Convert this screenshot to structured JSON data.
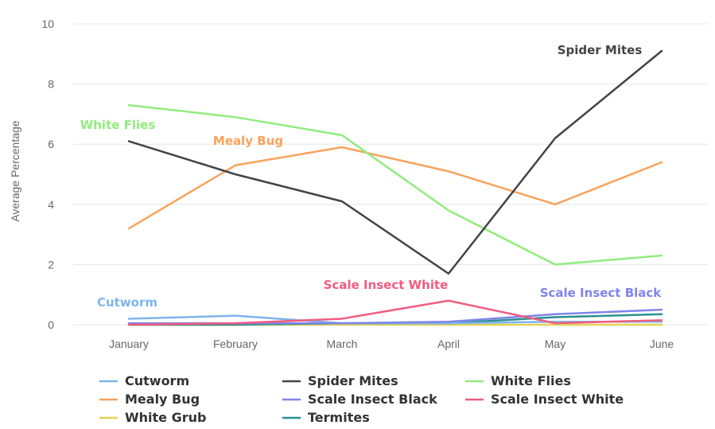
{
  "chart_data": {
    "type": "line",
    "title": "",
    "xlabel": "",
    "ylabel": "Average Percentage",
    "ylim": [
      0,
      10
    ],
    "yticks": [
      "0",
      "2",
      "4",
      "6",
      "8",
      "10"
    ],
    "categories": [
      "January",
      "February",
      "March",
      "April",
      "May",
      "June"
    ],
    "grid": true,
    "legend_position": "bottom",
    "series": [
      {
        "name": "Cutworm",
        "color": "#7cb5ec",
        "values": [
          0.2,
          0.3,
          0.05,
          0.05,
          0.1,
          0.1
        ]
      },
      {
        "name": "Spider Mites",
        "color": "#434348",
        "values": [
          6.1,
          5.0,
          4.1,
          1.7,
          6.2,
          9.1
        ]
      },
      {
        "name": "White Flies",
        "color": "#90ed7d",
        "values": [
          7.3,
          6.9,
          6.3,
          3.8,
          2.0,
          2.3
        ]
      },
      {
        "name": "Mealy Bug",
        "color": "#f7a35c",
        "values": [
          3.2,
          5.3,
          5.9,
          5.1,
          4.0,
          5.4
        ]
      },
      {
        "name": "Scale Insect Black",
        "color": "#8085e9",
        "values": [
          0.05,
          0.05,
          0.05,
          0.1,
          0.35,
          0.5
        ]
      },
      {
        "name": "Scale Insect White",
        "color": "#f15c80",
        "values": [
          0.0,
          0.05,
          0.2,
          0.8,
          0.05,
          0.15
        ]
      },
      {
        "name": "White Grub",
        "color": "#e4d354",
        "values": [
          0.0,
          0.0,
          0.0,
          0.0,
          0.0,
          0.0
        ]
      },
      {
        "name": "Termites",
        "color": "#2b908f",
        "values": [
          0.0,
          0.0,
          0.05,
          0.05,
          0.25,
          0.35
        ]
      }
    ],
    "annotations": [
      {
        "text": "White Flies",
        "series": "White Flies"
      },
      {
        "text": "Mealy Bug",
        "series": "Mealy Bug"
      },
      {
        "text": "Spider Mites",
        "series": "Spider Mites"
      },
      {
        "text": "Cutworm",
        "series": "Cutworm"
      },
      {
        "text": "Scale Insect White",
        "series": "Scale Insect White"
      },
      {
        "text": "Scale Insect Black",
        "series": "Scale Insect Black"
      }
    ]
  }
}
